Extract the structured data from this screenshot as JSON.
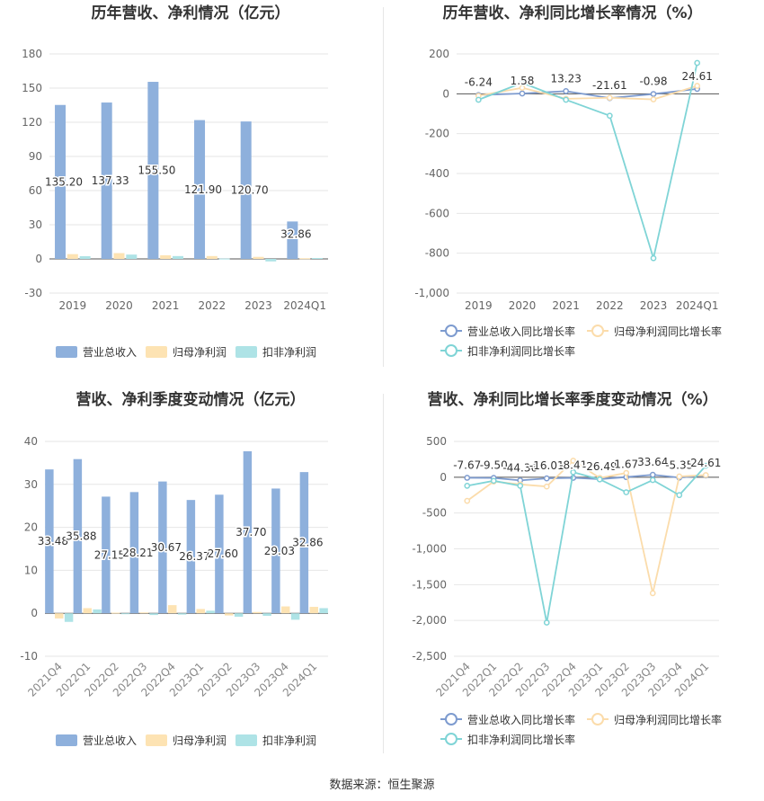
{
  "footer": "数据来源：恒生聚源",
  "colors": {
    "revenue": "#8eb0dc",
    "netprofit": "#fde3b3",
    "deducted": "#aee3e6",
    "line1": "#7d9bcf",
    "line2": "#fbdcab",
    "line3": "#7fd4d6"
  },
  "chart_data": [
    {
      "type": "bar",
      "title": "历年营收、净利情况（亿元）",
      "categories": [
        "2019",
        "2020",
        "2021",
        "2022",
        "2023",
        "2024Q1"
      ],
      "series": [
        {
          "name": "营业总收入",
          "values": [
            135.2,
            137.33,
            155.5,
            121.9,
            120.7,
            32.86
          ],
          "labels": [
            "135.20",
            "137.33",
            "155.50",
            "121.90",
            "120.70",
            "32.86"
          ]
        },
        {
          "name": "归母净利润",
          "values": [
            4.2,
            5.1,
            3.2,
            2.5,
            1.8,
            0.6
          ]
        },
        {
          "name": "扣非净利润",
          "values": [
            2.4,
            3.8,
            2.5,
            0.3,
            -2.2,
            0.8
          ]
        }
      ],
      "yticks": [
        180,
        150,
        120,
        90,
        60,
        30,
        0,
        -30
      ],
      "ylim": [
        -30,
        180
      ],
      "grid": true,
      "legend": "bottom"
    },
    {
      "type": "line",
      "title": "历年营收、净利同比增长率情况（%）",
      "categories": [
        "2019",
        "2020",
        "2021",
        "2022",
        "2023",
        "2024Q1"
      ],
      "series": [
        {
          "name": "营业总收入同比增长率",
          "values": [
            -6.24,
            1.58,
            13.23,
            -21.61,
            -0.98,
            24.61
          ],
          "labels": [
            "-6.24",
            "1.58",
            "13.23",
            "-21.61",
            "-0.98",
            "24.61"
          ]
        },
        {
          "name": "归母净利润同比增长率",
          "values": [
            -10,
            30,
            -25,
            -20,
            -28,
            40
          ]
        },
        {
          "name": "扣非净利润同比增长率",
          "values": [
            -30,
            55,
            -30,
            -110,
            -825,
            155
          ]
        }
      ],
      "yticks": [
        200,
        0,
        -200,
        -400,
        -600,
        -800,
        -1000
      ],
      "ytick_labels": [
        "200",
        "0",
        "-200",
        "-400",
        "-600",
        "-800",
        "-1,000"
      ],
      "ylim": [
        -1000,
        200
      ],
      "grid": true,
      "legend": "bottom"
    },
    {
      "type": "bar",
      "title": "营收、净利季度变动情况（亿元）",
      "categories": [
        "2021Q4",
        "2022Q1",
        "2022Q2",
        "2022Q3",
        "2022Q4",
        "2023Q1",
        "2023Q2",
        "2023Q3",
        "2023Q4",
        "2024Q1"
      ],
      "series": [
        {
          "name": "营业总收入",
          "values": [
            33.48,
            35.88,
            27.15,
            28.21,
            30.67,
            26.37,
            27.6,
            37.7,
            29.03,
            32.86
          ],
          "labels": [
            "33.48",
            "35.88",
            "27.15",
            "28.21",
            "30.67",
            "26.37",
            "27.60",
            "37.70",
            "29.03",
            "32.86"
          ]
        },
        {
          "name": "归母净利润",
          "values": [
            -1.2,
            1.2,
            0.15,
            0.2,
            1.9,
            1.0,
            -0.5,
            0.3,
            1.6,
            1.5
          ]
        },
        {
          "name": "扣非净利润",
          "values": [
            -2.0,
            0.9,
            -0.1,
            -0.4,
            -0.3,
            0.6,
            -0.8,
            -0.6,
            -1.5,
            1.2
          ]
        }
      ],
      "yticks": [
        40,
        30,
        20,
        10,
        0,
        -10
      ],
      "ylim": [
        -10,
        40
      ],
      "grid": true,
      "legend": "bottom"
    },
    {
      "type": "line",
      "title": "营收、净利同比增长率季度变动情况（%）",
      "categories": [
        "2021Q4",
        "2022Q1",
        "2022Q2",
        "2022Q3",
        "2022Q4",
        "2023Q1",
        "2023Q2",
        "2023Q3",
        "2023Q4",
        "2024Q1"
      ],
      "series": [
        {
          "name": "营业总收入同比增长率",
          "values": [
            -7.67,
            -9.5,
            -44.36,
            -16.01,
            -8.41,
            -26.49,
            1.67,
            33.64,
            -5.35,
            24.61
          ],
          "labels": [
            "-7.67",
            "-9.50",
            "-44.36",
            "-16.01",
            "-8.41",
            "-26.49",
            "1.67",
            "33.64",
            "-5.35",
            "24.61"
          ]
        },
        {
          "name": "归母净利润同比增长率",
          "values": [
            -330,
            -60,
            -100,
            -130,
            230,
            -10,
            60,
            -1620,
            10,
            30
          ]
        },
        {
          "name": "扣非净利润同比增长率",
          "values": [
            -120,
            -50,
            -120,
            -2030,
            70,
            -30,
            -210,
            -40,
            -250,
            160
          ]
        }
      ],
      "yticks": [
        500,
        0,
        -500,
        -1000,
        -1500,
        -2000,
        -2500
      ],
      "ytick_labels": [
        "500",
        "0",
        "-500",
        "-1,000",
        "-1,500",
        "-2,000",
        "-2,500"
      ],
      "ylim": [
        -2500,
        500
      ],
      "grid": true,
      "legend": "bottom"
    }
  ]
}
